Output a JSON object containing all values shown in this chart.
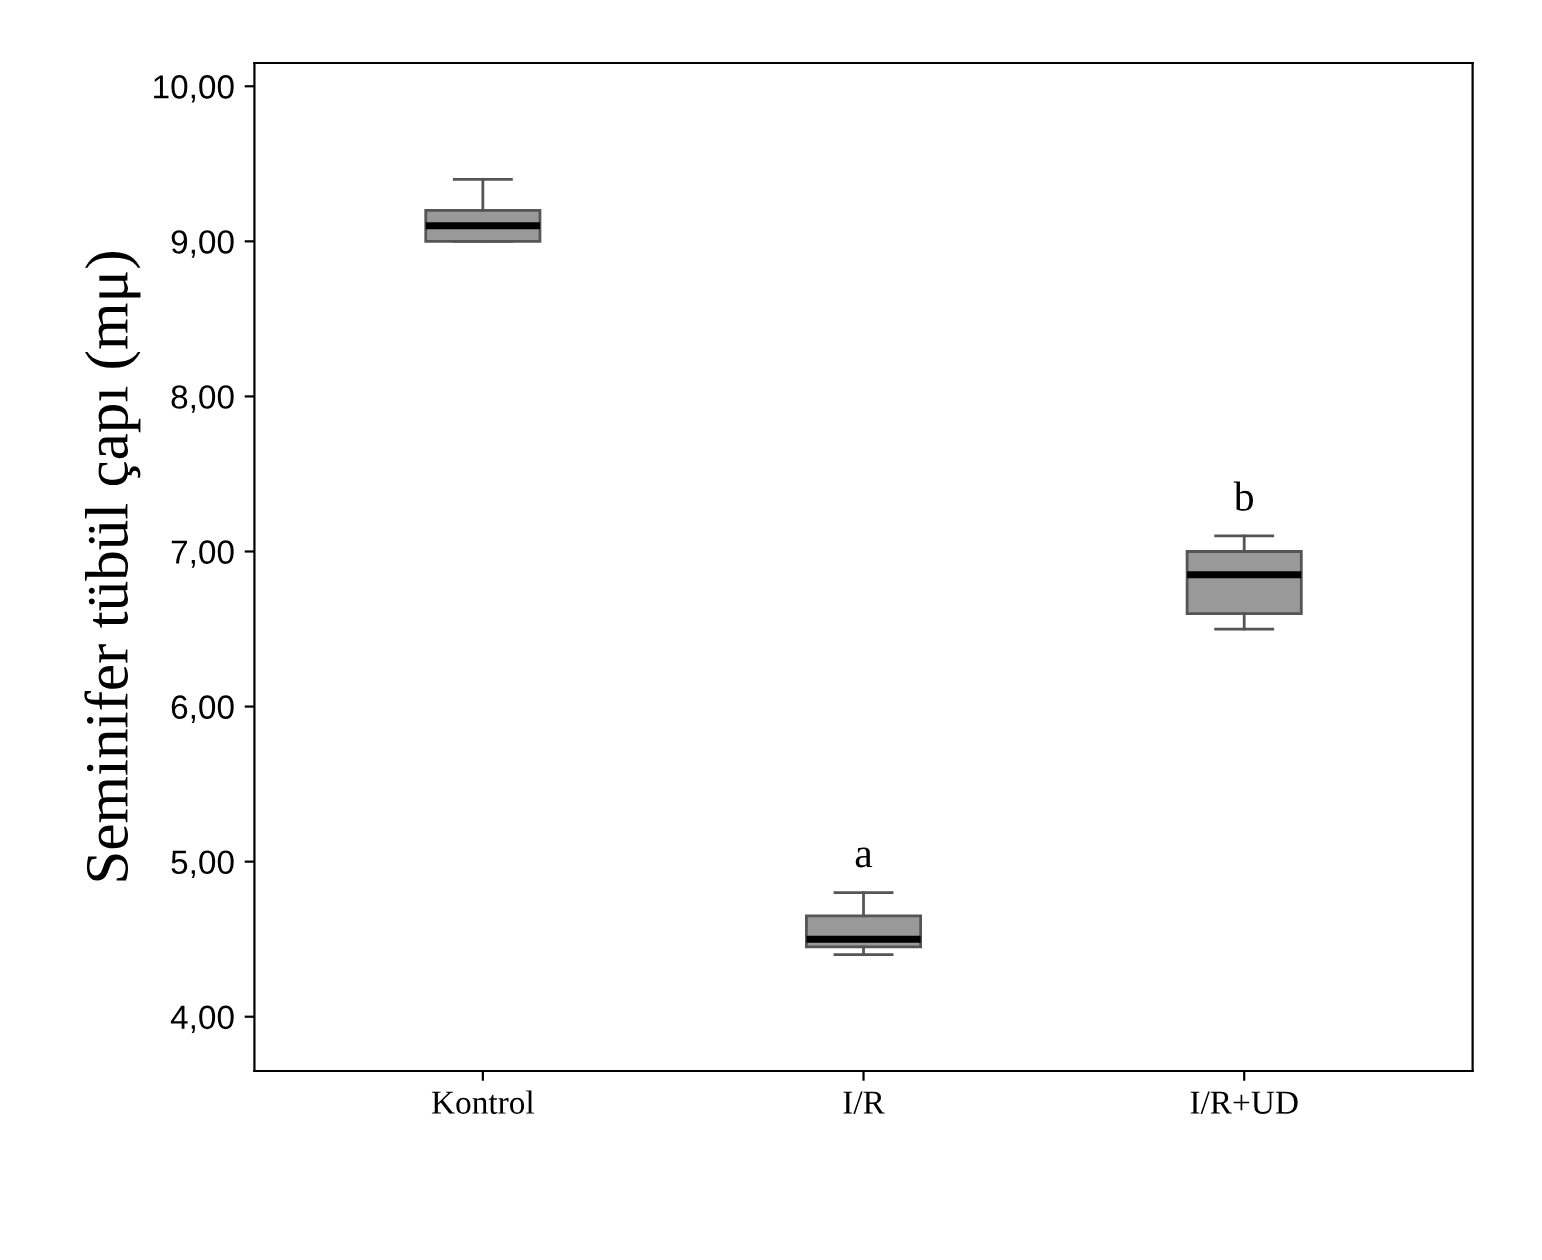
{
  "chart_data": {
    "type": "box",
    "ylabel": "Seminifer tübül çapı (mμ)",
    "categories": [
      "Kontrol",
      "I/R",
      "I/R+UD"
    ],
    "boxes": [
      {
        "low": 9.0,
        "q1": 9.0,
        "median": 9.1,
        "q3": 9.2,
        "high": 9.4
      },
      {
        "low": 4.4,
        "q1": 4.45,
        "median": 4.5,
        "q3": 4.65,
        "high": 4.8
      },
      {
        "low": 6.5,
        "q1": 6.6,
        "median": 6.85,
        "q3": 7.0,
        "high": 7.1
      }
    ],
    "color": "#999999",
    "ylim": [
      3.65,
      10.15
    ],
    "yticks": [
      {
        "value": 4,
        "label": "4,00"
      },
      {
        "value": 5,
        "label": "5,00"
      },
      {
        "value": 6,
        "label": "6,00"
      },
      {
        "value": 7,
        "label": "7,00"
      },
      {
        "value": 8,
        "label": "8,00"
      },
      {
        "value": 9,
        "label": "9,00"
      },
      {
        "value": 10,
        "label": "10,00"
      }
    ],
    "annotations": [
      {
        "text": "a",
        "x": "I/R",
        "y": 4.8
      },
      {
        "text": "b",
        "x": "I/R+UD",
        "y": 7.1
      }
    ],
    "grid": false
  }
}
